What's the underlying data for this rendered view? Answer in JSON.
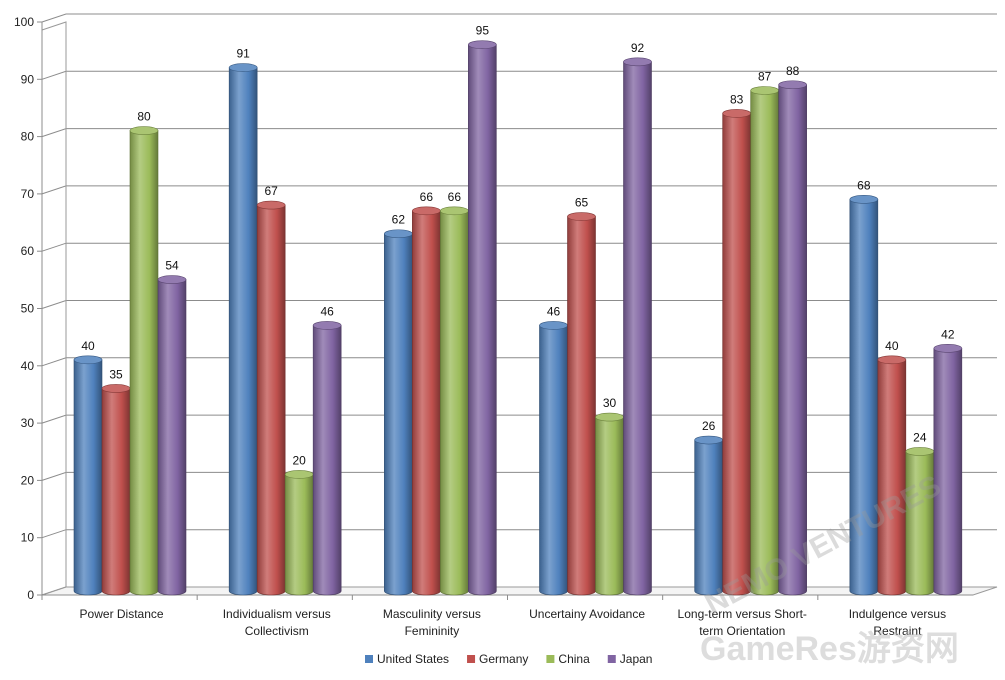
{
  "chart_data": {
    "type": "bar",
    "title": "",
    "xlabel": "",
    "ylabel": "",
    "ylim": [
      0,
      100
    ],
    "yticks": [
      0,
      10,
      20,
      30,
      40,
      50,
      60,
      70,
      80,
      90,
      100
    ],
    "grid": true,
    "legend_position": "bottom",
    "categories": [
      [
        "Power Distance"
      ],
      [
        "Individualism versus",
        "Collectivism"
      ],
      [
        "Masculinity versus",
        "Femininity"
      ],
      [
        "Uncertainy Avoidance"
      ],
      [
        "Long-term versus Short-",
        "term Orientation"
      ],
      [
        "Indulgence versus",
        "Restraint"
      ]
    ],
    "series": [
      {
        "name": "United States",
        "color": "#4f81bd",
        "values": [
          40,
          91,
          62,
          46,
          26,
          68
        ]
      },
      {
        "name": "Germany",
        "color": "#c0504d",
        "values": [
          35,
          67,
          66,
          65,
          83,
          40
        ]
      },
      {
        "name": "China",
        "color": "#9bbb59",
        "values": [
          80,
          20,
          66,
          30,
          87,
          24
        ]
      },
      {
        "name": "Japan",
        "color": "#8064a2",
        "values": [
          54,
          46,
          95,
          92,
          88,
          42
        ]
      }
    ]
  },
  "watermarks": {
    "brand": "NEMO VENTURES",
    "site": "GameRes游资网"
  }
}
